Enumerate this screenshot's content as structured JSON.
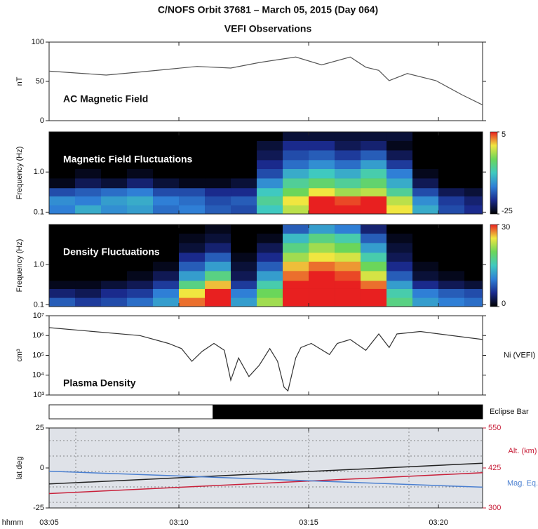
{
  "header": {
    "title": "C/NOFS Orbit 37681 – March 05, 2015 (Day 064)",
    "subtitle": "VEFI Observations"
  },
  "x_axis": {
    "label": "hhmm",
    "xlim": [
      185,
      201.7
    ],
    "xticks": [
      {
        "value": 185,
        "label": "03:05"
      },
      {
        "value": 190,
        "label": "03:10"
      },
      {
        "value": 195,
        "label": "03:15"
      },
      {
        "value": 200,
        "label": "03:20"
      }
    ]
  },
  "chart_data": [
    {
      "type": "line",
      "title": "AC Magnetic Field",
      "ylabel": "nT",
      "color": "#555555",
      "ylim": [
        0,
        100
      ],
      "yticks": [
        0,
        50,
        100
      ],
      "x": [
        185,
        187.2,
        188.5,
        190.7,
        192,
        193.1,
        194.5,
        195.5,
        196.6,
        197.2,
        197.7,
        198.1,
        198.8,
        199.9,
        200.9,
        201.7
      ],
      "values": [
        63,
        58,
        62,
        69,
        67,
        74,
        81,
        71,
        81,
        68,
        64,
        51,
        60,
        51,
        33,
        20
      ]
    },
    {
      "type": "heatmap",
      "title": "Magnetic Field Fluctuations",
      "ylabel": "Frequency (Hz)",
      "log": true,
      "ylim": [
        0.09,
        10
      ],
      "yticks": [
        0.1,
        {
          "value": 1,
          "label": "1.0"
        }
      ],
      "colormap": [
        "#000000",
        "#1a2a8c",
        "#2f7fd6",
        "#3fc9c0",
        "#6bd65a",
        "#f0e640",
        "#e82020"
      ],
      "cbar_lim": [
        -25,
        5
      ],
      "cbar_ticks": [
        -25,
        5
      ],
      "x_bins": [
        185,
        186,
        187,
        188,
        189,
        190,
        191,
        192,
        193,
        194,
        195,
        196,
        197,
        198,
        199,
        200,
        201,
        202
      ],
      "y_bins": [
        0.09,
        0.15,
        0.25,
        0.4,
        0.7,
        1.2,
        2,
        3.5,
        6,
        10
      ],
      "z": [
        [
          -15,
          -12,
          -14,
          -13,
          -16,
          -15,
          -17,
          -18,
          -10,
          -2,
          5,
          5,
          5,
          0,
          -12,
          -18,
          -20
        ],
        [
          -14,
          -15,
          -13,
          -12,
          -15,
          -16,
          -18,
          -17,
          -8,
          0,
          5,
          4,
          5,
          -2,
          -14,
          -19,
          -21
        ],
        [
          -18,
          -17,
          -16,
          -15,
          -18,
          -18,
          -20,
          -20,
          -10,
          -5,
          0,
          -3,
          -2,
          -8,
          -18,
          -22,
          -23
        ],
        [
          -24,
          -22,
          -23,
          -21,
          -23,
          -24,
          -24,
          -23,
          -14,
          -8,
          -6,
          -8,
          -6,
          -12,
          -22,
          -25,
          -25
        ],
        [
          -25,
          -24,
          -25,
          -24,
          -25,
          -25,
          -25,
          -25,
          -18,
          -12,
          -10,
          -12,
          -9,
          -15,
          -24,
          -25,
          -25
        ],
        [
          -25,
          -25,
          -25,
          -25,
          -25,
          -25,
          -25,
          -25,
          -20,
          -16,
          -14,
          -16,
          -13,
          -19,
          -25,
          -25,
          -25
        ],
        [
          -25,
          -25,
          -25,
          -25,
          -25,
          -25,
          -25,
          -25,
          -22,
          -18,
          -17,
          -19,
          -17,
          -22,
          -25,
          -25,
          -25
        ],
        [
          -25,
          -25,
          -25,
          -25,
          -25,
          -25,
          -25,
          -25,
          -23,
          -20,
          -20,
          -22,
          -21,
          -24,
          -25,
          -25,
          -25
        ],
        [
          -25,
          -25,
          -25,
          -25,
          -25,
          -25,
          -25,
          -25,
          -25,
          -23,
          -23,
          -23,
          -23,
          -23,
          -25,
          -25,
          -25
        ]
      ]
    },
    {
      "type": "heatmap",
      "title": "Density Fluctuations",
      "ylabel": "Frequency (Hz)",
      "log": true,
      "ylim": [
        0.09,
        10
      ],
      "yticks": [
        0.1,
        {
          "value": 1,
          "label": "1.0"
        }
      ],
      "colormap": [
        "#000000",
        "#1a2a8c",
        "#2f7fd6",
        "#3fc9c0",
        "#6bd65a",
        "#f0e640",
        "#e82020"
      ],
      "cbar_lim": [
        0,
        30
      ],
      "cbar_ticks": [
        0,
        30
      ],
      "x_bins": [
        185,
        186,
        187,
        188,
        189,
        190,
        191,
        192,
        193,
        194,
        195,
        196,
        197,
        198,
        199,
        200,
        201,
        202
      ],
      "y_bins": [
        0.09,
        0.15,
        0.25,
        0.4,
        0.7,
        1.2,
        2,
        3.5,
        6,
        10
      ],
      "z": [
        [
          8,
          6,
          7,
          9,
          12,
          28,
          30,
          12,
          22,
          30,
          30,
          30,
          30,
          18,
          12,
          10,
          9
        ],
        [
          4,
          3,
          5,
          6,
          10,
          25,
          30,
          10,
          20,
          30,
          30,
          30,
          30,
          16,
          10,
          8,
          7
        ],
        [
          1,
          1,
          2,
          3,
          6,
          18,
          26,
          6,
          16,
          30,
          30,
          30,
          28,
          12,
          5,
          3,
          2
        ],
        [
          0,
          0,
          0,
          1,
          3,
          12,
          18,
          3,
          12,
          28,
          30,
          29,
          24,
          8,
          2,
          1,
          0
        ],
        [
          0,
          0,
          0,
          0,
          1,
          8,
          12,
          2,
          8,
          26,
          28,
          27,
          20,
          5,
          1,
          0,
          0
        ],
        [
          0,
          0,
          0,
          0,
          0,
          5,
          8,
          1,
          5,
          22,
          25,
          24,
          16,
          3,
          0,
          0,
          0
        ],
        [
          0,
          0,
          0,
          0,
          0,
          2,
          4,
          0,
          3,
          18,
          22,
          20,
          12,
          2,
          0,
          0,
          0
        ],
        [
          0,
          0,
          0,
          0,
          0,
          1,
          2,
          0,
          1,
          14,
          18,
          16,
          8,
          1,
          0,
          0,
          0
        ],
        [
          0,
          0,
          0,
          0,
          0,
          0,
          1,
          0,
          0,
          8,
          12,
          10,
          4,
          0,
          0,
          0,
          0
        ]
      ]
    },
    {
      "type": "line",
      "title": "Plasma Density",
      "ylabel": "cm³",
      "annotation": "Ni (VEFI)",
      "log": true,
      "color": "#333333",
      "ylim": [
        1000,
        10000000
      ],
      "yticks": [
        {
          "value": 1000,
          "label": "10³"
        },
        {
          "value": 10000,
          "label": "10⁴"
        },
        {
          "value": 100000,
          "label": "10⁵"
        },
        {
          "value": 1000000,
          "label": "10⁶"
        },
        {
          "value": 10000000,
          "label": "10⁷"
        }
      ],
      "x": [
        185,
        188.5,
        189.6,
        190.1,
        190.5,
        190.9,
        191.35,
        191.75,
        192,
        192.3,
        192.7,
        193.1,
        193.5,
        193.8,
        194.05,
        194.2,
        194.5,
        194.7,
        195.1,
        195.8,
        196.1,
        196.6,
        197.2,
        197.7,
        198.1,
        198.4,
        199.3,
        201.7
      ],
      "values": [
        2500000,
        1000000,
        400000,
        220000,
        50000,
        160000,
        400000,
        180000,
        5600,
        74000,
        8500,
        32000,
        220000,
        50000,
        2500,
        1600,
        74000,
        250000,
        400000,
        110000,
        400000,
        630000,
        180000,
        1200000,
        250000,
        1200000,
        1600000,
        630000
      ]
    },
    {
      "type": "timeline",
      "title": "Eclipse Bar",
      "color": "#000000",
      "eclipse": [
        191.3,
        201.7
      ]
    },
    {
      "type": "line",
      "ylabel": "lat deg",
      "background": "#dfe2e8",
      "ylim": [
        -25,
        25
      ],
      "yticks": [
        -25,
        0,
        25
      ],
      "y2lim": [
        300,
        550
      ],
      "y2ticks": [
        300,
        425,
        550
      ],
      "y2color": "#c8203a",
      "x": [
        185,
        201.7
      ],
      "series": [
        {
          "color": "#222222",
          "values": [
            -10,
            3
          ]
        },
        {
          "name": "Alt. (km)",
          "color": "#c8203a",
          "axis": "y2",
          "values": [
            345,
            410
          ]
        },
        {
          "name": "Mag. Eq.",
          "color": "#4a7fd0",
          "values": [
            -2,
            -12
          ]
        }
      ]
    }
  ]
}
